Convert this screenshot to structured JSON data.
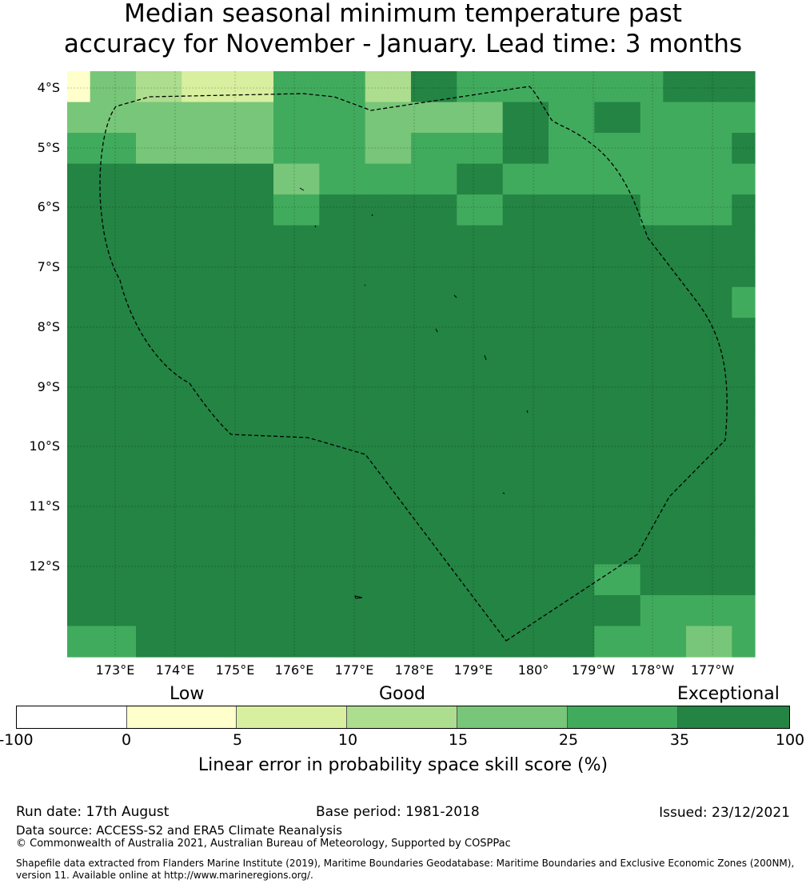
{
  "title": {
    "line1": "Median seasonal minimum temperature past",
    "line2": "accuracy for November - January. Lead time: 3 months"
  },
  "map": {
    "latitude_labels": [
      "4°S",
      "5°S",
      "6°S",
      "7°S",
      "8°S",
      "9°S",
      "10°S",
      "11°S",
      "12°S"
    ],
    "longitude_labels": [
      "173°E",
      "174°E",
      "175°E",
      "176°E",
      "177°E",
      "178°E",
      "179°E",
      "180°",
      "179°W",
      "178°W",
      "177°W"
    ],
    "boundary_style": "dashed black line (exclusive economic zone)",
    "grid_values_legend": "cell colours by skill-score class",
    "class_colors": {
      "c5_10": "#d9efa0",
      "c10_15": "#addd8e",
      "c15_25": "#78c679",
      "c25_35": "#41ab5d",
      "c35_100": "#238443",
      "c0_5": "#ffffcc"
    },
    "grid_classes": [
      [
        "c0_5",
        "c15_25",
        "c15_25",
        "c10_15",
        "c10_15",
        "c5_10",
        "c5_10",
        "c5_10",
        "c5_10",
        "c25_35",
        "c25_35",
        "c25_35",
        "c25_35",
        "c10_15",
        "c10_15",
        "c35_100",
        "c35_100",
        "c25_35",
        "c25_35",
        "c25_35",
        "c25_35",
        "c25_35",
        "c25_35",
        "c25_35",
        "c25_35",
        "c25_35",
        "c35_100",
        "c35_100",
        "c35_100",
        "c35_100"
      ],
      [
        "c15_25",
        "c15_25",
        "c15_25",
        "c15_25",
        "c15_25",
        "c15_25",
        "c15_25",
        "c15_25",
        "c15_25",
        "c25_35",
        "c25_35",
        "c25_35",
        "c25_35",
        "c15_25",
        "c15_25",
        "c15_25",
        "c15_25",
        "c15_25",
        "c15_25",
        "c35_100",
        "c35_100",
        "c25_35",
        "c25_35",
        "c35_100",
        "c35_100",
        "c25_35",
        "c25_35",
        "c25_35",
        "c25_35",
        "c25_35"
      ],
      [
        "c25_35",
        "c25_35",
        "c25_35",
        "c15_25",
        "c15_25",
        "c15_25",
        "c15_25",
        "c15_25",
        "c15_25",
        "c25_35",
        "c25_35",
        "c25_35",
        "c25_35",
        "c15_25",
        "c15_25",
        "c25_35",
        "c25_35",
        "c25_35",
        "c25_35",
        "c35_100",
        "c35_100",
        "c25_35",
        "c25_35",
        "c25_35",
        "c25_35",
        "c25_35",
        "c25_35",
        "c25_35",
        "c25_35",
        "c35_100"
      ],
      [
        "c35_100",
        "c35_100",
        "c35_100",
        "c35_100",
        "c35_100",
        "c35_100",
        "c35_100",
        "c35_100",
        "c35_100",
        "c15_25",
        "c15_25",
        "c25_35",
        "c25_35",
        "c25_35",
        "c25_35",
        "c25_35",
        "c25_35",
        "c35_100",
        "c35_100",
        "c25_35",
        "c25_35",
        "c25_35",
        "c25_35",
        "c25_35",
        "c25_35",
        "c25_35",
        "c25_35",
        "c25_35",
        "c25_35",
        "c25_35"
      ],
      [
        "c35_100",
        "c35_100",
        "c35_100",
        "c35_100",
        "c35_100",
        "c35_100",
        "c35_100",
        "c35_100",
        "c35_100",
        "c25_35",
        "c25_35",
        "c35_100",
        "c35_100",
        "c35_100",
        "c35_100",
        "c35_100",
        "c35_100",
        "c25_35",
        "c25_35",
        "c35_100",
        "c35_100",
        "c35_100",
        "c35_100",
        "c35_100",
        "c35_100",
        "c25_35",
        "c25_35",
        "c25_35",
        "c25_35",
        "c35_100"
      ],
      [
        "c35_100",
        "c35_100",
        "c35_100",
        "c35_100",
        "c35_100",
        "c35_100",
        "c35_100",
        "c35_100",
        "c35_100",
        "c35_100",
        "c35_100",
        "c35_100",
        "c35_100",
        "c35_100",
        "c35_100",
        "c35_100",
        "c35_100",
        "c35_100",
        "c35_100",
        "c35_100",
        "c35_100",
        "c35_100",
        "c35_100",
        "c35_100",
        "c35_100",
        "c35_100",
        "c35_100",
        "c35_100",
        "c35_100",
        "c35_100"
      ],
      [
        "c35_100",
        "c35_100",
        "c35_100",
        "c35_100",
        "c35_100",
        "c35_100",
        "c35_100",
        "c35_100",
        "c35_100",
        "c35_100",
        "c35_100",
        "c35_100",
        "c35_100",
        "c35_100",
        "c35_100",
        "c35_100",
        "c35_100",
        "c35_100",
        "c35_100",
        "c35_100",
        "c35_100",
        "c35_100",
        "c35_100",
        "c35_100",
        "c35_100",
        "c35_100",
        "c35_100",
        "c35_100",
        "c35_100",
        "c35_100"
      ],
      [
        "c35_100",
        "c35_100",
        "c35_100",
        "c35_100",
        "c35_100",
        "c35_100",
        "c35_100",
        "c35_100",
        "c35_100",
        "c35_100",
        "c35_100",
        "c35_100",
        "c35_100",
        "c35_100",
        "c35_100",
        "c35_100",
        "c35_100",
        "c35_100",
        "c35_100",
        "c35_100",
        "c35_100",
        "c35_100",
        "c35_100",
        "c35_100",
        "c35_100",
        "c35_100",
        "c35_100",
        "c35_100",
        "c35_100",
        "c25_35"
      ],
      [
        "c35_100",
        "c35_100",
        "c35_100",
        "c35_100",
        "c35_100",
        "c35_100",
        "c35_100",
        "c35_100",
        "c35_100",
        "c35_100",
        "c35_100",
        "c35_100",
        "c35_100",
        "c35_100",
        "c35_100",
        "c35_100",
        "c35_100",
        "c35_100",
        "c35_100",
        "c35_100",
        "c35_100",
        "c35_100",
        "c35_100",
        "c35_100",
        "c35_100",
        "c35_100",
        "c35_100",
        "c35_100",
        "c35_100",
        "c35_100"
      ],
      [
        "c35_100",
        "c35_100",
        "c35_100",
        "c35_100",
        "c35_100",
        "c35_100",
        "c35_100",
        "c35_100",
        "c35_100",
        "c35_100",
        "c35_100",
        "c35_100",
        "c35_100",
        "c35_100",
        "c35_100",
        "c35_100",
        "c35_100",
        "c35_100",
        "c35_100",
        "c35_100",
        "c35_100",
        "c35_100",
        "c35_100",
        "c35_100",
        "c35_100",
        "c35_100",
        "c35_100",
        "c35_100",
        "c35_100",
        "c35_100"
      ],
      [
        "c35_100",
        "c35_100",
        "c35_100",
        "c35_100",
        "c35_100",
        "c35_100",
        "c35_100",
        "c35_100",
        "c35_100",
        "c35_100",
        "c35_100",
        "c35_100",
        "c35_100",
        "c35_100",
        "c35_100",
        "c35_100",
        "c35_100",
        "c35_100",
        "c35_100",
        "c35_100",
        "c35_100",
        "c35_100",
        "c35_100",
        "c35_100",
        "c35_100",
        "c35_100",
        "c35_100",
        "c35_100",
        "c35_100",
        "c35_100"
      ],
      [
        "c35_100",
        "c35_100",
        "c35_100",
        "c35_100",
        "c35_100",
        "c35_100",
        "c35_100",
        "c35_100",
        "c35_100",
        "c35_100",
        "c35_100",
        "c35_100",
        "c35_100",
        "c35_100",
        "c35_100",
        "c35_100",
        "c35_100",
        "c35_100",
        "c35_100",
        "c35_100",
        "c35_100",
        "c35_100",
        "c35_100",
        "c35_100",
        "c35_100",
        "c35_100",
        "c35_100",
        "c35_100",
        "c35_100",
        "c35_100"
      ],
      [
        "c35_100",
        "c35_100",
        "c35_100",
        "c35_100",
        "c35_100",
        "c35_100",
        "c35_100",
        "c35_100",
        "c35_100",
        "c35_100",
        "c35_100",
        "c35_100",
        "c35_100",
        "c35_100",
        "c35_100",
        "c35_100",
        "c35_100",
        "c35_100",
        "c35_100",
        "c35_100",
        "c35_100",
        "c35_100",
        "c35_100",
        "c35_100",
        "c35_100",
        "c35_100",
        "c35_100",
        "c35_100",
        "c35_100",
        "c35_100"
      ],
      [
        "c35_100",
        "c35_100",
        "c35_100",
        "c35_100",
        "c35_100",
        "c35_100",
        "c35_100",
        "c35_100",
        "c35_100",
        "c35_100",
        "c35_100",
        "c35_100",
        "c35_100",
        "c35_100",
        "c35_100",
        "c35_100",
        "c35_100",
        "c35_100",
        "c35_100",
        "c35_100",
        "c35_100",
        "c35_100",
        "c35_100",
        "c35_100",
        "c35_100",
        "c35_100",
        "c35_100",
        "c35_100",
        "c35_100",
        "c35_100"
      ],
      [
        "c35_100",
        "c35_100",
        "c35_100",
        "c35_100",
        "c35_100",
        "c35_100",
        "c35_100",
        "c35_100",
        "c35_100",
        "c35_100",
        "c35_100",
        "c35_100",
        "c35_100",
        "c35_100",
        "c35_100",
        "c35_100",
        "c35_100",
        "c35_100",
        "c35_100",
        "c35_100",
        "c35_100",
        "c35_100",
        "c35_100",
        "c35_100",
        "c35_100",
        "c35_100",
        "c35_100",
        "c35_100",
        "c35_100",
        "c35_100"
      ],
      [
        "c35_100",
        "c35_100",
        "c35_100",
        "c35_100",
        "c35_100",
        "c35_100",
        "c35_100",
        "c35_100",
        "c35_100",
        "c35_100",
        "c35_100",
        "c35_100",
        "c35_100",
        "c35_100",
        "c35_100",
        "c35_100",
        "c35_100",
        "c35_100",
        "c35_100",
        "c35_100",
        "c35_100",
        "c35_100",
        "c35_100",
        "c35_100",
        "c35_100",
        "c35_100",
        "c35_100",
        "c35_100",
        "c35_100",
        "c35_100"
      ],
      [
        "c35_100",
        "c35_100",
        "c35_100",
        "c35_100",
        "c35_100",
        "c35_100",
        "c35_100",
        "c35_100",
        "c35_100",
        "c35_100",
        "c35_100",
        "c35_100",
        "c35_100",
        "c35_100",
        "c35_100",
        "c35_100",
        "c35_100",
        "c35_100",
        "c35_100",
        "c35_100",
        "c35_100",
        "c35_100",
        "c35_100",
        "c25_35",
        "c25_35",
        "c35_100",
        "c35_100",
        "c35_100",
        "c35_100",
        "c35_100"
      ],
      [
        "c35_100",
        "c35_100",
        "c35_100",
        "c35_100",
        "c35_100",
        "c35_100",
        "c35_100",
        "c35_100",
        "c35_100",
        "c35_100",
        "c35_100",
        "c35_100",
        "c35_100",
        "c35_100",
        "c35_100",
        "c35_100",
        "c35_100",
        "c35_100",
        "c35_100",
        "c35_100",
        "c35_100",
        "c35_100",
        "c35_100",
        "c35_100",
        "c35_100",
        "c25_35",
        "c25_35",
        "c25_35",
        "c25_35",
        "c25_35"
      ],
      [
        "c25_35",
        "c25_35",
        "c25_35",
        "c35_100",
        "c35_100",
        "c35_100",
        "c35_100",
        "c35_100",
        "c35_100",
        "c35_100",
        "c35_100",
        "c35_100",
        "c35_100",
        "c35_100",
        "c35_100",
        "c35_100",
        "c35_100",
        "c35_100",
        "c35_100",
        "c35_100",
        "c35_100",
        "c35_100",
        "c35_100",
        "c25_35",
        "c25_35",
        "c25_35",
        "c25_35",
        "c15_25",
        "c15_25",
        "c25_35"
      ]
    ]
  },
  "legend": {
    "categories": [
      "Low",
      "Good",
      "Exceptional"
    ],
    "tick_labels": [
      "-100",
      "0",
      "5",
      "10",
      "15",
      "25",
      "35",
      "100"
    ],
    "segment_colors": [
      "#ffffff",
      "#ffffcc",
      "#d9efa0",
      "#addd8e",
      "#78c679",
      "#41ab5d",
      "#238443"
    ],
    "title": "Linear error in probability space skill score (%)"
  },
  "footer": {
    "run_date": "Run date: 17th August",
    "base_period": "Base period: 1981-2018",
    "issued": "Issued: 23/12/2021",
    "data_source": "Data source: ACCESS-S2 and ERA5 Climate Reanalysis",
    "copyright": "© Commonwealth of Australia 2021, Australian Bureau of Meteorology, Supported by COSPPac",
    "shapefile_line1": "Shapefile data extracted from Flanders Marine Institute (2019), Maritime Boundaries Geodatabase: Maritime Boundaries and Exclusive Economic Zones (200NM),",
    "shapefile_line2": "version 11. Available online at http://www.marineregions.org/."
  }
}
